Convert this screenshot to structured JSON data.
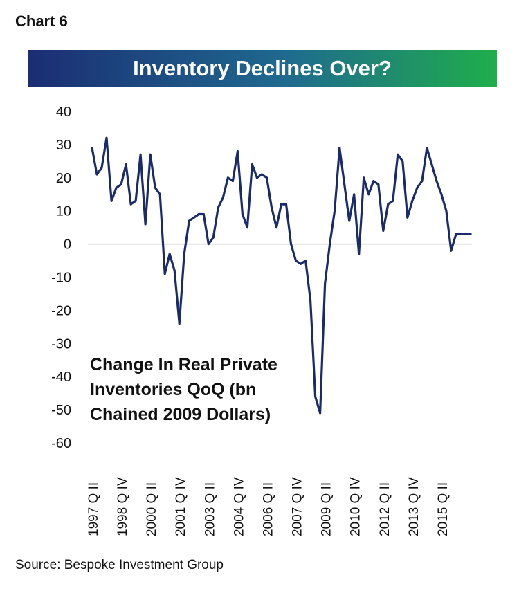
{
  "header": {
    "chart_label": "Chart 6",
    "source": "Source: Bespoke Investment Group"
  },
  "chart_data": {
    "type": "line",
    "title": "Inventory Declines Over?",
    "annotation": [
      "Change In Real Private",
      "Inventories QoQ (bn",
      "Chained 2009 Dollars)"
    ],
    "ylim": [
      -60,
      40
    ],
    "yticks": [
      40,
      30,
      20,
      10,
      0,
      -10,
      -20,
      -30,
      -40,
      -50,
      -60
    ],
    "xlabel": "",
    "ylabel": "",
    "grid": false,
    "zero_line": true,
    "colors": {
      "line": "#1a2b6b",
      "zero_line": "#c8c8c8",
      "banner_start": "#1b2d73",
      "banner_mid": "#1f6a8f",
      "banner_end": "#1fae4b"
    },
    "x_tick_labels": [
      {
        "label": "1997 Q II",
        "q": 0
      },
      {
        "label": "1998 Q IV",
        "q": 6
      },
      {
        "label": "2000 Q II",
        "q": 12
      },
      {
        "label": "2001 Q IV",
        "q": 18
      },
      {
        "label": "2003 Q II",
        "q": 24
      },
      {
        "label": "2004 Q IV",
        "q": 30
      },
      {
        "label": "2006 Q II",
        "q": 36
      },
      {
        "label": "2007 Q IV",
        "q": 42
      },
      {
        "label": "2009 Q II",
        "q": 48
      },
      {
        "label": "2010 Q IV",
        "q": 54
      },
      {
        "label": "2012 Q II",
        "q": 60
      },
      {
        "label": "2013 Q IV",
        "q": 66
      },
      {
        "label": "2015 Q II",
        "q": 72
      }
    ],
    "quarters_total": 78,
    "series": [
      {
        "name": "Change In Real Private Inventories QoQ",
        "x": [
          0,
          1,
          2,
          3,
          4,
          5,
          6,
          7,
          8,
          9,
          10,
          11,
          12,
          13,
          14,
          15,
          16,
          17,
          18,
          19,
          20,
          21,
          22,
          23,
          24,
          25,
          26,
          27,
          28,
          29,
          30,
          31,
          32,
          33,
          34,
          35,
          36,
          37,
          38,
          39,
          40,
          41,
          42,
          43,
          44,
          45,
          46,
          47,
          48,
          49,
          50,
          51,
          52,
          53,
          54,
          55,
          56,
          57,
          58,
          59,
          60,
          61,
          62,
          63,
          64,
          65,
          66,
          67,
          68,
          69,
          70,
          71,
          72,
          73,
          74,
          75,
          76,
          77,
          78
        ],
        "values": [
          29,
          21,
          23,
          32,
          13,
          17,
          18,
          24,
          12,
          13,
          27,
          6,
          27,
          17,
          15,
          -9,
          -3,
          -8,
          -24,
          -3,
          7,
          8,
          9,
          9,
          0,
          2,
          11,
          14,
          20,
          19,
          28,
          9,
          5,
          24,
          20,
          21,
          20,
          11,
          5,
          12,
          12,
          0,
          -5,
          -6,
          -5,
          -17,
          -46,
          -51,
          -12,
          0,
          10,
          29,
          18,
          7,
          15,
          -3,
          20,
          15,
          19,
          18,
          4,
          12,
          13,
          27,
          25,
          8,
          13,
          17,
          19,
          29,
          24,
          19,
          15,
          10,
          -2,
          3,
          3,
          3,
          3
        ]
      }
    ]
  }
}
